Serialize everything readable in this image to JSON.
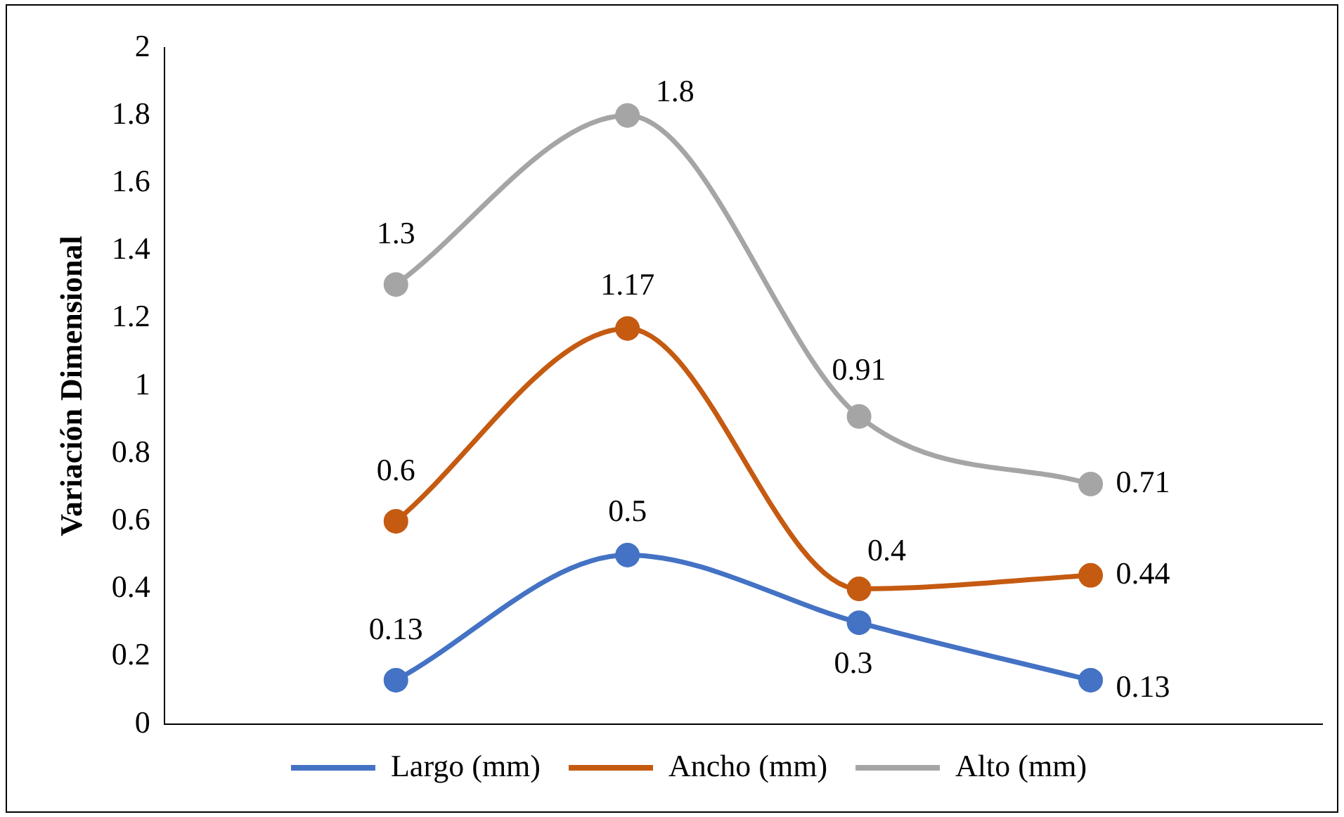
{
  "chart_data": {
    "type": "line",
    "ylabel": "Variación Dimensional",
    "categories": [
      null,
      null,
      null,
      null
    ],
    "series": [
      {
        "name": "Largo (mm)",
        "color": "#4472c4",
        "values": [
          0.13,
          0.5,
          0.3,
          0.13
        ]
      },
      {
        "name": "Ancho (mm)",
        "color": "#c55a11",
        "values": [
          0.6,
          1.17,
          0.4,
          0.44
        ]
      },
      {
        "name": "Alto (mm)",
        "color": "#a5a5a5",
        "values": [
          1.3,
          1.8,
          0.91,
          0.71
        ]
      }
    ],
    "ylim": [
      0,
      2
    ],
    "yticks": [
      0,
      0.2,
      0.4,
      0.6,
      0.8,
      1,
      1.2,
      1.4,
      1.6,
      1.8,
      2
    ],
    "grid": false,
    "legend": "bottom",
    "marker": "circle",
    "line_style": "solid",
    "data_labels": true,
    "tick_labels": "y"
  }
}
